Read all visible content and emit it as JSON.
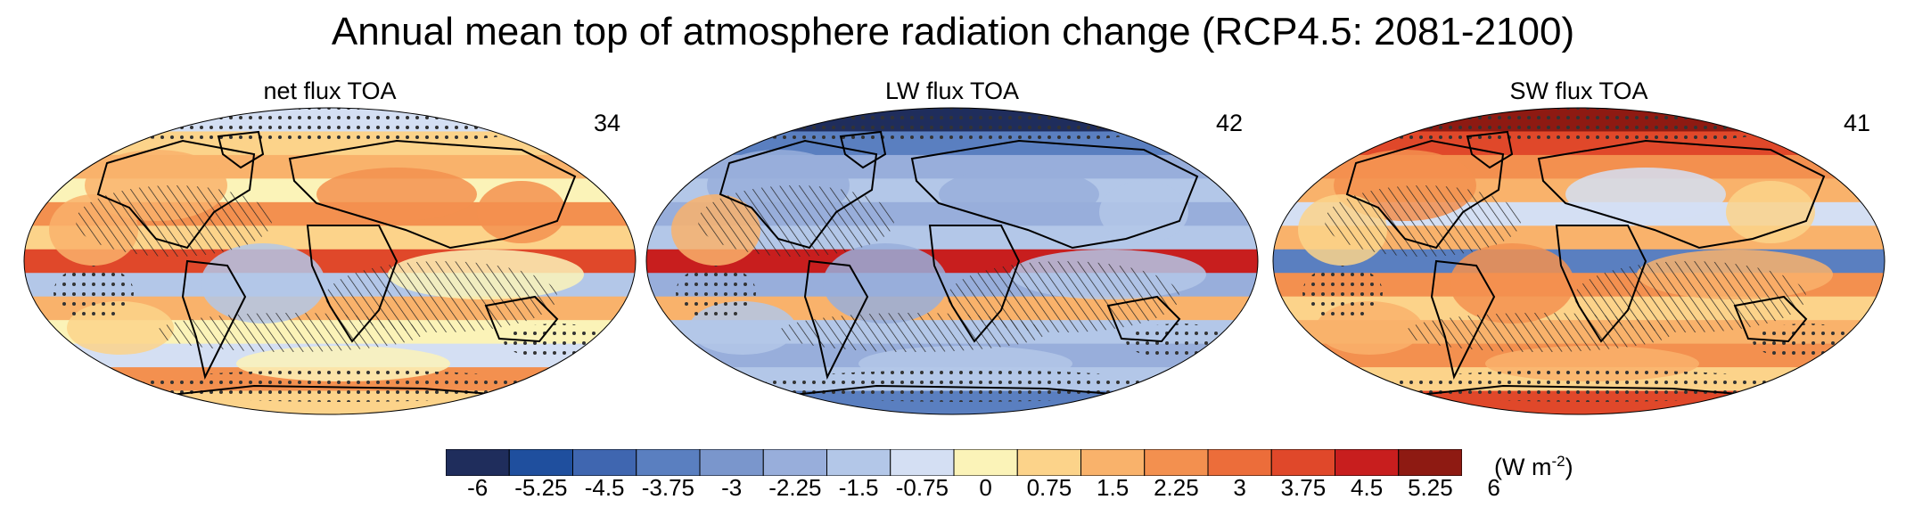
{
  "title": "Annual mean top of atmosphere radiation change (RCP4.5: 2081-2100)",
  "panels": [
    {
      "title": "net flux TOA",
      "count": "34"
    },
    {
      "title": "LW flux TOA",
      "count": "42"
    },
    {
      "title": "SW flux TOA",
      "count": "41"
    }
  ],
  "colorbar": {
    "labels": [
      "-6",
      "-5.25",
      "-4.5",
      "-3.75",
      "-3",
      "-2.25",
      "-1.5",
      "-0.75",
      "0",
      "0.75",
      "1.5",
      "2.25",
      "3",
      "3.75",
      "4.5",
      "5.25",
      "6"
    ],
    "colors": [
      "#1f2d5c",
      "#1f4f9e",
      "#3f66b0",
      "#5a7fc0",
      "#7a96cc",
      "#98aedb",
      "#b3c7e8",
      "#d4dff3",
      "#fbf3b8",
      "#fcd38a",
      "#f9b26b",
      "#f3904f",
      "#ec6d3a",
      "#e0482a",
      "#c81e1e",
      "#8e1a12"
    ],
    "units_base": "(W m",
    "units_exp": "-2",
    "units_end": ")"
  },
  "map_colors": {
    "net": [
      "#d4dff3",
      "#fcd38a",
      "#f9b26b",
      "#fbf3b8",
      "#f3904f",
      "#fcd38a",
      "#e0482a",
      "#b3c7e8",
      "#f9b26b",
      "#fbf3b8",
      "#d4dff3",
      "#f3904f",
      "#fcd38a"
    ],
    "lw": [
      "#1f2d5c",
      "#5a7fc0",
      "#98aedb",
      "#b3c7e8",
      "#98aedb",
      "#b3c7e8",
      "#c81e1e",
      "#98aedb",
      "#f9b26b",
      "#b3c7e8",
      "#98aedb",
      "#b3c7e8",
      "#5a7fc0"
    ],
    "sw": [
      "#8e1a12",
      "#e0482a",
      "#f3904f",
      "#f9b26b",
      "#d4dff3",
      "#f9b26b",
      "#5a7fc0",
      "#f3904f",
      "#fcd38a",
      "#f9b26b",
      "#f3904f",
      "#fcd38a",
      "#e0482a"
    ]
  }
}
